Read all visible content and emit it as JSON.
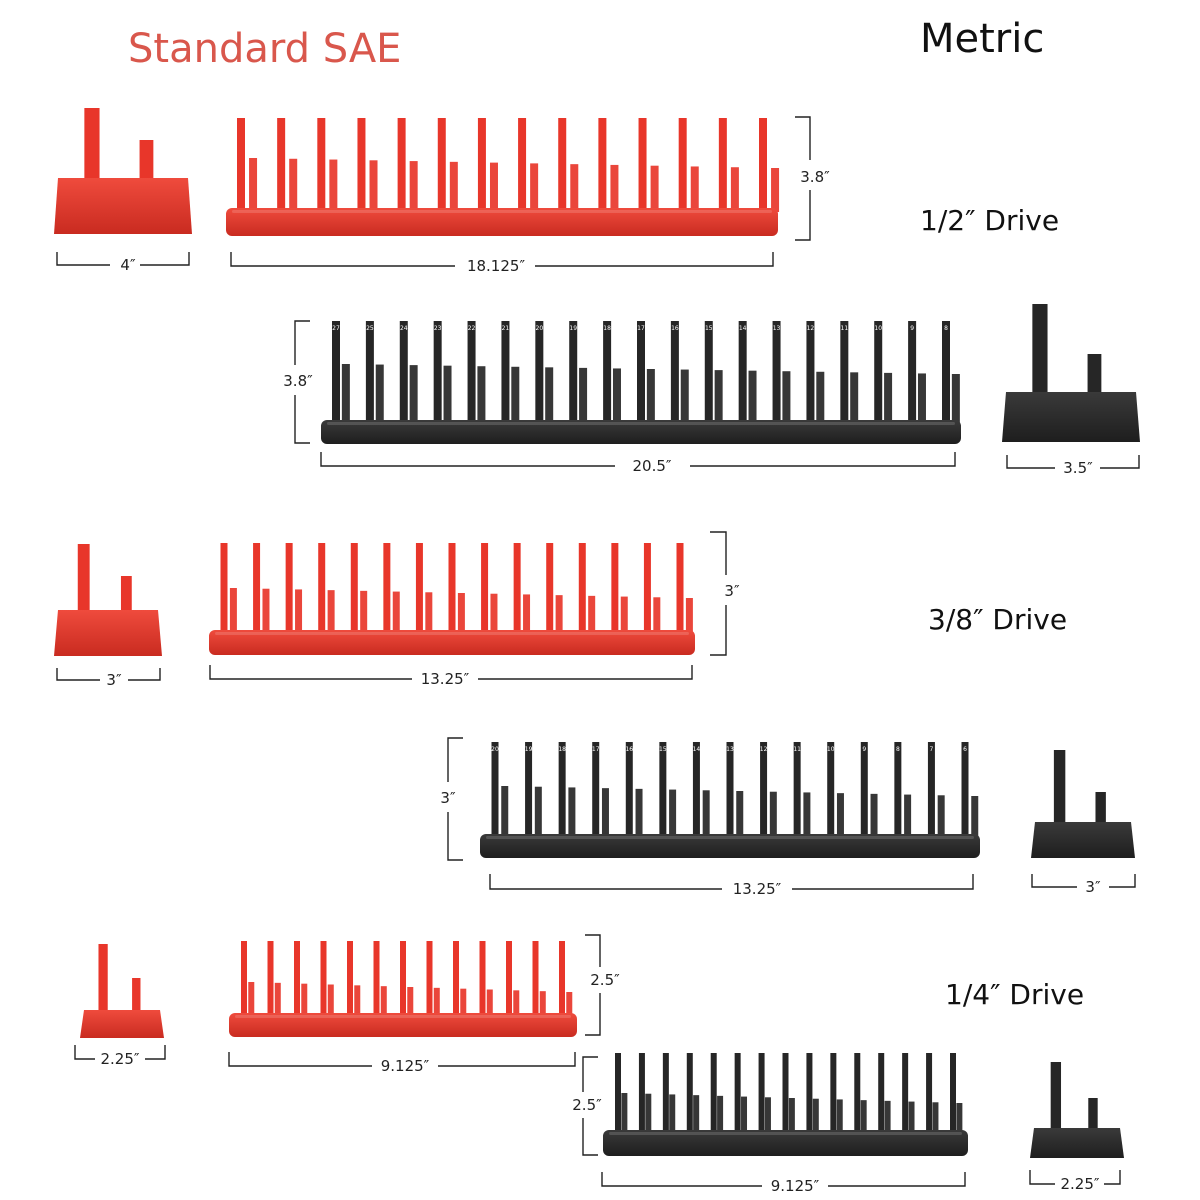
{
  "headings": {
    "sae": "Standard SAE",
    "metric": "Metric"
  },
  "drives": {
    "half": "1/2″ Drive",
    "three_eighths": "3/8″ Drive",
    "quarter": "1/4″ Drive"
  },
  "colors": {
    "sae_red": "#e23a2e",
    "sae_heading": "#d9574c",
    "metric_black": "#2b2b2b",
    "text": "#111111"
  },
  "dimensions": {
    "sae_half_side": "4″",
    "sae_half_length": "18.125″",
    "sae_half_height": "3.8″",
    "metric_half_height": "3.8″",
    "metric_half_length": "20.5″",
    "metric_half_side": "3.5″",
    "sae_38_height": "3″",
    "sae_38_side": "3″",
    "sae_38_length": "13.25″",
    "metric_38_height": "3″",
    "metric_38_length": "13.25″",
    "metric_38_side": "3″",
    "sae_14_side": "2.25″",
    "sae_14_length": "9.125″",
    "sae_14_height": "2.5″",
    "metric_14_height": "2.5″",
    "metric_14_length": "9.125″",
    "metric_14_side": "2.25″"
  },
  "peg_labels": {
    "metric_half": [
      "27",
      "25",
      "24",
      "23",
      "22",
      "21",
      "20",
      "19",
      "18",
      "17",
      "16",
      "15",
      "14",
      "13",
      "12",
      "11",
      "10",
      "9",
      "8"
    ],
    "metric_38": [
      "20",
      "19",
      "18",
      "17",
      "16",
      "15",
      "14",
      "13",
      "12",
      "11",
      "10",
      "9",
      "8",
      "7",
      "6"
    ]
  }
}
